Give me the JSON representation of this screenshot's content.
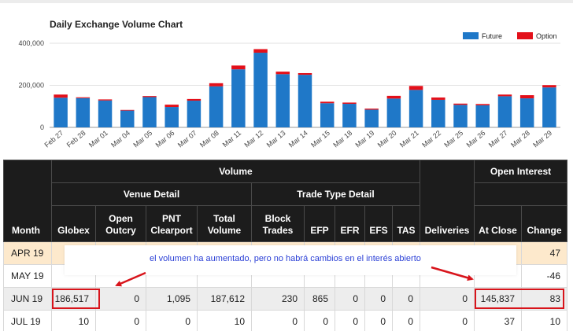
{
  "chart_data": {
    "type": "bar",
    "stacked": true,
    "title": "Daily Exchange Volume Chart",
    "categories": [
      "Feb 27",
      "Feb 28",
      "Mar 01",
      "Mar 04",
      "Mar 05",
      "Mar 06",
      "Mar 07",
      "Mar 08",
      "Mar 11",
      "Mar 12",
      "Mar 13",
      "Mar 14",
      "Mar 15",
      "Mar 18",
      "Mar 19",
      "Mar 20",
      "Mar 21",
      "Mar 22",
      "Mar 25",
      "Mar 26",
      "Mar 27",
      "Mar 28",
      "Mar 29"
    ],
    "series": [
      {
        "name": "Future",
        "color": "#1f78c8",
        "values": [
          141000,
          139000,
          128000,
          80000,
          144000,
          97000,
          127000,
          195000,
          276000,
          355000,
          253000,
          250000,
          115000,
          112000,
          84000,
          137000,
          178000,
          131000,
          107000,
          105000,
          148000,
          138000,
          190000
        ]
      },
      {
        "name": "Option",
        "color": "#e3101a",
        "values": [
          15000,
          4000,
          5000,
          3000,
          5000,
          11000,
          8000,
          15000,
          18000,
          17000,
          12000,
          8000,
          7000,
          6000,
          5000,
          13000,
          19000,
          11000,
          6000,
          6000,
          8000,
          15000,
          11000
        ]
      }
    ],
    "ylim": [
      0,
      400000
    ],
    "yticks": [
      0,
      200000,
      400000
    ],
    "ytick_labels": [
      "0",
      "200,000",
      "400,000"
    ],
    "grid": true,
    "legend": "top-right"
  },
  "table": {
    "headers": {
      "month": "Month",
      "volume": "Volume",
      "venue_detail": "Venue Detail",
      "trade_type_detail": "Trade Type Detail",
      "deliveries": "Deliveries",
      "open_interest": "Open Interest",
      "globex": "Globex",
      "open_outcry": "Open Outcry",
      "pnt_clearport": "PNT Clearport",
      "total_volume": "Total Volume",
      "block_trades": "Block Trades",
      "efp": "EFP",
      "efr": "EFR",
      "efs": "EFS",
      "tas": "TAS",
      "at_close": "At Close",
      "change": "Change"
    },
    "rows": [
      {
        "month": "APR 19",
        "globex": "",
        "open_outcry": "",
        "pnt_clearport": "",
        "total_volume": "",
        "block_trades": "",
        "efp": "",
        "efr": "",
        "efs": "",
        "tas": "",
        "deliveries": "",
        "at_close": "",
        "change": "47"
      },
      {
        "month": "MAY 19",
        "globex": "",
        "open_outcry": "",
        "pnt_clearport": "",
        "total_volume": "",
        "block_trades": "",
        "efp": "",
        "efr": "",
        "efs": "",
        "tas": "",
        "deliveries": "",
        "at_close": "",
        "change": "-46"
      },
      {
        "month": "JUN 19",
        "globex": "186,517",
        "open_outcry": "0",
        "pnt_clearport": "1,095",
        "total_volume": "187,612",
        "block_trades": "230",
        "efp": "865",
        "efr": "0",
        "efs": "0",
        "tas": "0",
        "deliveries": "0",
        "at_close": "145,837",
        "change": "83"
      },
      {
        "month": "JUL 19",
        "globex": "10",
        "open_outcry": "0",
        "pnt_clearport": "0",
        "total_volume": "10",
        "block_trades": "0",
        "efp": "0",
        "efr": "0",
        "efs": "0",
        "tas": "0",
        "deliveries": "0",
        "at_close": "37",
        "change": "10"
      }
    ]
  },
  "annotation": {
    "text": "el volumen ha aumentado, pero no habrá cambios en el interés abierto",
    "color": "#d8141b"
  }
}
